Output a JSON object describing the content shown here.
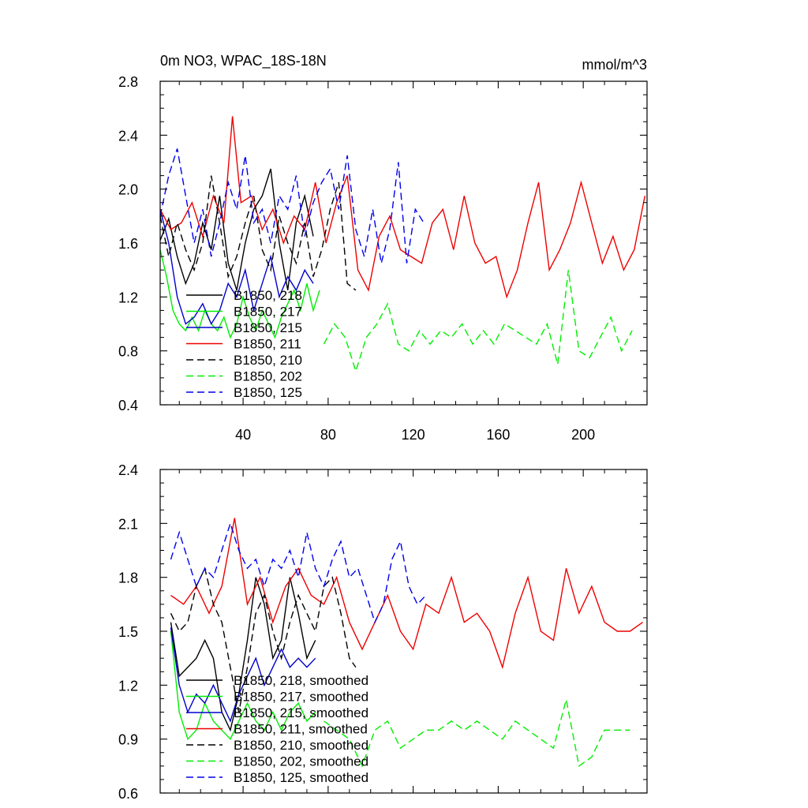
{
  "chart_data": [
    {
      "type": "line",
      "title": "0m NO3, WPAC_18S-18N",
      "units": "mmol/m^3",
      "xlim": [
        1,
        230
      ],
      "ylim": [
        0.4,
        2.8
      ],
      "yticks": [
        "0.4",
        "0.8",
        "1.2",
        "1.6",
        "2.0",
        "2.4",
        "2.8"
      ],
      "xticks": [
        "40",
        "80",
        "120",
        "160",
        "200"
      ],
      "legend_position": "lower-left",
      "series": [
        {
          "name": "B1850, 218",
          "color": "#000000",
          "dash": "solid",
          "x": [
            1,
            5,
            9,
            13,
            17,
            21,
            25,
            29,
            33,
            37,
            41,
            45,
            49,
            53,
            57,
            61,
            65,
            69,
            73
          ],
          "y": [
            1.62,
            1.78,
            1.5,
            1.3,
            1.45,
            1.75,
            1.55,
            1.95,
            1.45,
            1.25,
            1.6,
            1.85,
            1.95,
            2.15,
            1.6,
            1.25,
            1.75,
            1.95,
            1.65
          ]
        },
        {
          "name": "B1850, 217",
          "color": "#00ee00",
          "dash": "solid",
          "x": [
            1,
            4,
            7,
            10,
            13,
            16,
            19,
            22,
            25,
            28,
            31,
            34,
            37,
            40,
            43,
            46,
            49,
            52,
            55,
            58,
            61,
            64,
            67,
            70,
            73,
            76
          ],
          "y": [
            1.55,
            1.35,
            1.1,
            1.0,
            0.95,
            1.05,
            0.95,
            1.1,
            1.0,
            0.95,
            1.05,
            0.9,
            1.0,
            1.2,
            1.05,
            0.95,
            1.1,
            1.0,
            0.9,
            1.05,
            1.15,
            1.25,
            1.1,
            1.3,
            1.1,
            1.25
          ]
        },
        {
          "name": "B1850, 215",
          "color": "#0000cc",
          "dash": "solid",
          "x": [
            1,
            5,
            9,
            13,
            17,
            21,
            25,
            29,
            33,
            37,
            41,
            45,
            49,
            53,
            57,
            61,
            65,
            69,
            73
          ],
          "y": [
            1.85,
            1.6,
            1.2,
            1.0,
            1.05,
            1.15,
            1.0,
            1.1,
            1.3,
            1.2,
            1.4,
            1.1,
            1.3,
            1.5,
            1.2,
            1.35,
            1.25,
            1.4,
            1.3
          ]
        },
        {
          "name": "B1850, 211",
          "color": "#ee0000",
          "dash": "solid",
          "x": [
            1,
            6,
            11,
            16,
            21,
            26,
            31,
            35,
            39,
            44,
            49,
            54,
            59,
            64,
            69,
            74,
            79,
            84,
            89,
            94,
            99,
            104,
            109,
            114,
            119,
            124,
            129,
            134,
            139,
            144,
            149,
            154,
            159,
            164,
            169,
            174,
            179,
            184,
            189,
            194,
            199,
            204,
            209,
            214,
            219,
            224,
            229
          ],
          "y": [
            1.85,
            1.7,
            1.75,
            1.9,
            1.65,
            1.95,
            1.75,
            2.54,
            1.9,
            1.95,
            1.7,
            1.85,
            1.6,
            1.8,
            1.7,
            2.05,
            1.6,
            1.9,
            2.1,
            1.4,
            1.25,
            1.65,
            1.8,
            1.55,
            1.5,
            1.45,
            1.75,
            1.85,
            1.55,
            1.95,
            1.6,
            1.45,
            1.5,
            1.2,
            1.4,
            1.75,
            2.05,
            1.4,
            1.55,
            1.75,
            2.05,
            1.75,
            1.45,
            1.65,
            1.4,
            1.55,
            1.95
          ]
        },
        {
          "name": "B1850, 210",
          "color": "#000000",
          "dash": "dash",
          "x": [
            1,
            5,
            9,
            13,
            17,
            21,
            25,
            29,
            33,
            37,
            41,
            45,
            49,
            53,
            57,
            61,
            65,
            69,
            73,
            77,
            81,
            85,
            89,
            93
          ],
          "y": [
            1.8,
            1.5,
            1.75,
            1.55,
            1.4,
            1.6,
            2.1,
            1.75,
            1.35,
            1.5,
            1.75,
            1.95,
            1.55,
            1.4,
            1.8,
            1.6,
            1.45,
            1.75,
            1.35,
            1.55,
            1.85,
            2.05,
            1.3,
            1.25
          ]
        },
        {
          "name": "B1850, 202",
          "color": "#00ee00",
          "dash": "dash",
          "x": [
            78,
            83,
            88,
            93,
            98,
            103,
            108,
            113,
            118,
            123,
            128,
            133,
            138,
            143,
            148,
            153,
            158,
            163,
            168,
            173,
            178,
            183,
            188,
            193,
            198,
            203,
            208,
            213,
            218,
            223
          ],
          "y": [
            0.85,
            1.0,
            0.9,
            0.65,
            0.9,
            1.0,
            1.15,
            0.85,
            0.8,
            0.95,
            0.85,
            0.95,
            0.9,
            1.0,
            0.85,
            0.95,
            0.85,
            1.0,
            0.95,
            0.9,
            0.85,
            1.0,
            0.7,
            1.4,
            0.8,
            0.75,
            0.9,
            1.05,
            0.8,
            0.95
          ]
        },
        {
          "name": "B1850, 125",
          "color": "#0000ee",
          "dash": "dash",
          "x": [
            1,
            5,
            9,
            13,
            17,
            21,
            25,
            29,
            33,
            37,
            41,
            45,
            49,
            53,
            57,
            61,
            65,
            69,
            73,
            77,
            81,
            85,
            89,
            93,
            97,
            101,
            105,
            109,
            113,
            117,
            121,
            125
          ],
          "y": [
            1.8,
            2.1,
            2.3,
            1.95,
            1.6,
            1.85,
            1.5,
            1.75,
            2.05,
            1.85,
            2.25,
            1.75,
            1.85,
            1.6,
            1.95,
            1.85,
            2.1,
            1.65,
            1.9,
            2.05,
            2.15,
            1.85,
            2.25,
            1.7,
            1.5,
            1.85,
            1.45,
            1.7,
            2.2,
            1.45,
            1.85,
            1.75
          ]
        }
      ]
    },
    {
      "type": "line",
      "title": "",
      "xlim": [
        1,
        230
      ],
      "ylim": [
        0.6,
        2.4
      ],
      "yticks": [
        "0.6",
        "0.9",
        "1.2",
        "1.5",
        "1.8",
        "2.1",
        "2.4"
      ],
      "xticks": [
        "",
        "",
        "",
        "",
        ""
      ],
      "legend_position": "lower-left",
      "series": [
        {
          "name": "B1850, 218, smoothed",
          "color": "#000000",
          "dash": "solid",
          "x": [
            6,
            10,
            14,
            18,
            22,
            26,
            30,
            34,
            38,
            42,
            46,
            50,
            54,
            58,
            62,
            66,
            70,
            74
          ],
          "y": [
            1.55,
            1.25,
            1.3,
            1.35,
            1.45,
            1.35,
            1.05,
            0.95,
            1.15,
            1.45,
            1.8,
            1.65,
            1.35,
            1.45,
            1.8,
            1.6,
            1.35,
            1.45
          ]
        },
        {
          "name": "B1850, 217, smoothed",
          "color": "#00ee00",
          "dash": "solid",
          "x": [
            6,
            10,
            14,
            18,
            22,
            26,
            30,
            34,
            38,
            42,
            46,
            50,
            54,
            58,
            62,
            66,
            70,
            74
          ],
          "y": [
            1.5,
            1.05,
            0.9,
            0.95,
            1.1,
            1.0,
            0.95,
            0.9,
            1.0,
            1.1,
            1.0,
            0.95,
            1.05,
            0.95,
            1.05,
            1.1,
            1.0,
            1.05
          ]
        },
        {
          "name": "B1850, 215, smoothed",
          "color": "#0000cc",
          "dash": "solid",
          "x": [
            6,
            10,
            14,
            18,
            22,
            26,
            30,
            34,
            38,
            42,
            46,
            50,
            54,
            58,
            62,
            66,
            70,
            74
          ],
          "y": [
            1.52,
            1.2,
            1.05,
            1.15,
            1.1,
            1.2,
            1.1,
            1.0,
            1.15,
            1.25,
            1.35,
            1.2,
            1.3,
            1.4,
            1.3,
            1.35,
            1.3,
            1.35
          ]
        },
        {
          "name": "B1850, 211, smoothed",
          "color": "#ee0000",
          "dash": "solid",
          "x": [
            6,
            12,
            18,
            24,
            30,
            36,
            42,
            48,
            54,
            60,
            66,
            72,
            78,
            84,
            90,
            96,
            102,
            108,
            114,
            120,
            126,
            132,
            138,
            144,
            150,
            156,
            162,
            168,
            174,
            180,
            186,
            192,
            198,
            204,
            210,
            216,
            222,
            228
          ],
          "y": [
            1.7,
            1.65,
            1.75,
            1.6,
            1.75,
            2.13,
            1.65,
            1.8,
            1.55,
            1.75,
            1.85,
            1.7,
            1.65,
            1.8,
            1.55,
            1.4,
            1.55,
            1.7,
            1.5,
            1.4,
            1.65,
            1.6,
            1.8,
            1.55,
            1.6,
            1.5,
            1.3,
            1.6,
            1.8,
            1.5,
            1.45,
            1.85,
            1.6,
            1.75,
            1.55,
            1.5,
            1.5,
            1.55
          ]
        },
        {
          "name": "B1850, 210, smoothed",
          "color": "#000000",
          "dash": "dash",
          "x": [
            6,
            10,
            14,
            18,
            22,
            26,
            30,
            34,
            38,
            42,
            46,
            50,
            54,
            58,
            62,
            66,
            70,
            74,
            78,
            82,
            86,
            90,
            93
          ],
          "y": [
            1.6,
            1.5,
            1.55,
            1.75,
            1.85,
            1.65,
            1.55,
            1.3,
            1.05,
            1.3,
            1.6,
            1.7,
            1.5,
            1.35,
            1.55,
            1.7,
            1.6,
            1.5,
            1.75,
            1.8,
            1.6,
            1.35,
            1.3
          ]
        },
        {
          "name": "B1850, 202, smoothed",
          "color": "#00ee00",
          "dash": "dash",
          "x": [
            78,
            84,
            90,
            96,
            102,
            108,
            114,
            120,
            126,
            132,
            138,
            144,
            150,
            156,
            162,
            168,
            174,
            180,
            186,
            192,
            198,
            204,
            210,
            216,
            222
          ],
          "y": [
            1.0,
            0.95,
            0.9,
            0.75,
            0.95,
            1.0,
            0.85,
            0.9,
            0.95,
            0.95,
            1.0,
            0.95,
            1.0,
            0.95,
            0.9,
            1.0,
            0.95,
            0.9,
            0.85,
            1.12,
            0.75,
            0.8,
            0.95,
            0.95,
            0.95
          ]
        },
        {
          "name": "B1850, 125, smoothed",
          "color": "#0000ee",
          "dash": "dash",
          "x": [
            6,
            10,
            14,
            18,
            22,
            26,
            30,
            34,
            38,
            42,
            46,
            50,
            54,
            58,
            62,
            66,
            70,
            74,
            78,
            82,
            86,
            90,
            94,
            98,
            102,
            106,
            110,
            114,
            118,
            122,
            126
          ],
          "y": [
            1.9,
            2.05,
            1.9,
            1.75,
            1.85,
            1.8,
            1.95,
            2.1,
            1.95,
            1.85,
            1.9,
            1.75,
            1.9,
            1.85,
            1.95,
            1.8,
            2.05,
            1.85,
            1.75,
            1.9,
            2.0,
            1.8,
            1.85,
            1.7,
            1.55,
            1.65,
            1.9,
            2.0,
            1.75,
            1.65,
            1.7
          ]
        }
      ]
    }
  ]
}
